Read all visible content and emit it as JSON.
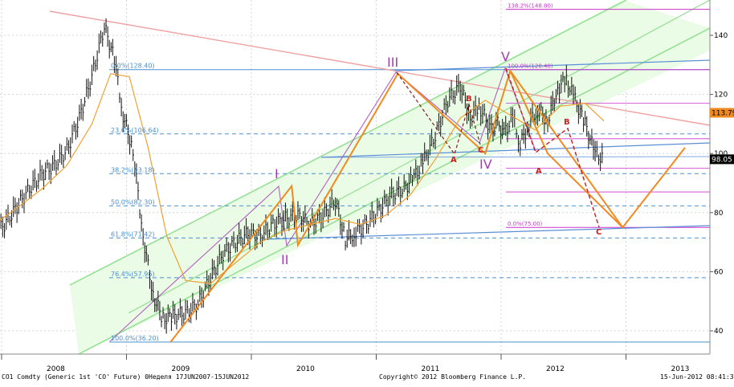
{
  "chart_data": {
    "type": "line",
    "title": "",
    "instrument_caption": "CO1 Comdty (Generic 1st 'CO' Future) 0Неделя 17JUN2007-15JUN2012",
    "copyright": "Copyright© 2012 Bloomberg Finance L.P.",
    "timestamp": "15-Jun-2012 08:41:32",
    "xlabel": "",
    "ylabel": "",
    "x_tick_labels": [
      "2008",
      "2009",
      "2010",
      "2011",
      "2012",
      "2013"
    ],
    "y_tick_labels": [
      "40",
      "60",
      "80",
      "100",
      "120",
      "140"
    ],
    "ylim": [
      32,
      150
    ],
    "grid": true,
    "last_price_label": "113.79",
    "current_price_label": "98.05",
    "series": [
      {
        "kind": "weekly-bars",
        "x": [
          2007.46,
          2007.55,
          2007.65,
          2007.75,
          2007.85,
          2007.95,
          2008.05,
          2008.15,
          2008.25,
          2008.35,
          2008.45,
          2008.53,
          2008.6,
          2008.68,
          2008.76,
          2008.84,
          2008.92,
          2009.0,
          2009.1,
          2009.2,
          2009.3,
          2009.4,
          2009.5,
          2009.6,
          2009.7,
          2009.8,
          2009.9,
          2010.0,
          2010.1,
          2010.2,
          2010.3,
          2010.38,
          2010.45,
          2010.55,
          2010.65,
          2010.75,
          2010.85,
          2010.93,
          2011.0,
          2011.1,
          2011.2,
          2011.3,
          2011.38,
          2011.45,
          2011.55,
          2011.6,
          2011.65,
          2011.72,
          2011.78,
          2011.85,
          2011.92,
          2012.0,
          2012.08,
          2012.15,
          2012.22,
          2012.3,
          2012.38,
          2012.45
        ],
        "values": [
          70,
          72,
          76,
          82,
          88,
          93,
          96,
          101,
          112,
          126,
          143,
          132,
          113,
          101,
          72,
          52,
          44,
          45,
          46,
          49,
          58,
          66,
          70,
          73,
          72,
          76,
          78,
          79,
          76,
          79,
          84,
          71,
          73,
          76,
          81,
          86,
          88,
          92,
          97,
          106,
          118,
          123,
          112,
          116,
          108,
          110,
          107,
          112,
          103,
          110,
          115,
          111,
          122,
          125,
          118,
          110,
          100,
          98
        ]
      },
      {
        "kind": "moving-average",
        "x": [
          2007.46,
          2007.7,
          2007.95,
          2008.15,
          2008.35,
          2008.5,
          2008.65,
          2008.8,
          2008.95,
          2009.1,
          2009.3,
          2009.5,
          2009.7,
          2009.9,
          2010.1,
          2010.3,
          2010.5,
          2010.7,
          2010.9,
          2011.1,
          2011.3,
          2011.5,
          2011.7,
          2011.9,
          2012.1,
          2012.3,
          2012.45
        ],
        "values": [
          73,
          80,
          88,
          96,
          110,
          127,
          126,
          102,
          72,
          57,
          56,
          63,
          70,
          74,
          76,
          78,
          76,
          79,
          86,
          98,
          112,
          118,
          113,
          108,
          116,
          117,
          111
        ]
      }
    ],
    "wave_labels": [
      "I",
      "II",
      "III",
      "IV",
      "V"
    ],
    "correction_labels": [
      "A",
      "B",
      "C",
      "A",
      "B",
      "C"
    ],
    "fibonacci_retracement": [
      {
        "level": "0.0%",
        "value": "128.40",
        "label": "0.0%(128.40)"
      },
      {
        "level": "23.6%",
        "value": "106.64",
        "label": "23.6%(106.64)"
      },
      {
        "level": "38.2%",
        "value": "93.18",
        "label": "38.2%(93.18)"
      },
      {
        "level": "50.0%",
        "value": "82.30",
        "label": "50.0%(82.30)"
      },
      {
        "level": "61.8%",
        "value": "71.42",
        "label": "61.8%(71.42)"
      },
      {
        "level": "76.4%",
        "value": "57.96",
        "label": "76.4%(57.96)"
      },
      {
        "level": "100.0%",
        "value": "36.20",
        "label": "100.0%(36.20)"
      }
    ],
    "fibonacci_extension": [
      {
        "level": "138.2%",
        "value": "148.80",
        "label": "138.2%(148.80)"
      },
      {
        "level": "100.0%",
        "value": "128.40",
        "label": "100.0%(128.40)"
      },
      {
        "level": "0.0%",
        "value": "75.00",
        "label": "0.0%(75.00)"
      }
    ],
    "wave_path": {
      "x": [
        2008.98,
        2009.95,
        2010.0,
        2010.8,
        2011.5,
        2011.7,
        2012.6
      ],
      "values": [
        36.2,
        89,
        69,
        127,
        100,
        128,
        75
      ]
    },
    "projection_path": {
      "x": [
        2011.7,
        2012.0,
        2012.6,
        2013.1
      ],
      "values": [
        128,
        100,
        75,
        102
      ]
    },
    "colors": {
      "price": "#111111",
      "moving_average": "#f0a030",
      "wave": "#f08a20",
      "impulse_labels": "#a040b0",
      "correction_labels": "#cc2020",
      "channel": "#90e090",
      "channel_fill": "#eafbe6",
      "trendline_blue": "#5a8fd8",
      "trendline_pink": "#f0a0a0",
      "fib_retracement": "#4a90d0",
      "fib_extension": "#cc33cc",
      "last_price_badge": "#f08a20",
      "current_price_badge": "#000000"
    }
  }
}
